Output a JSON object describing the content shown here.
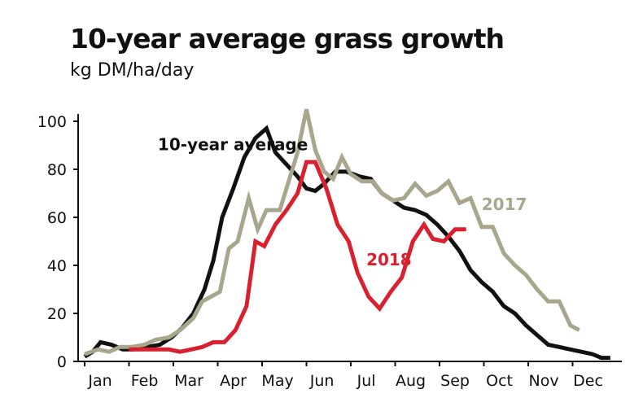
{
  "chart_data": {
    "type": "line",
    "title": "10-year average grass growth",
    "subtitle": "kg DM/ha/day",
    "xlabel": "",
    "ylabel": "",
    "xlim": [
      0,
      12
    ],
    "ylim": [
      0,
      110
    ],
    "yticks": [
      0,
      20,
      40,
      60,
      80,
      100
    ],
    "months": [
      "Jan",
      "Feb",
      "Mar",
      "Apr",
      "May",
      "Jun",
      "Jul",
      "Aug",
      "Sep",
      "Oct",
      "Nov",
      "Dec"
    ],
    "grid": false,
    "series": [
      {
        "name": "10-year average",
        "color": "#111111",
        "points": [
          [
            0.0,
            2
          ],
          [
            0.18,
            4
          ],
          [
            0.36,
            8
          ],
          [
            0.6,
            7
          ],
          [
            0.86,
            5
          ],
          [
            1.1,
            5
          ],
          [
            1.4,
            6
          ],
          [
            1.7,
            7
          ],
          [
            1.96,
            10
          ],
          [
            2.2,
            14
          ],
          [
            2.45,
            20
          ],
          [
            2.7,
            30
          ],
          [
            2.9,
            42
          ],
          [
            3.1,
            60
          ],
          [
            3.35,
            72
          ],
          [
            3.6,
            85
          ],
          [
            3.85,
            93
          ],
          [
            4.1,
            97
          ],
          [
            4.3,
            87
          ],
          [
            4.55,
            82
          ],
          [
            4.8,
            77
          ],
          [
            5.0,
            72
          ],
          [
            5.2,
            71
          ],
          [
            5.4,
            74
          ],
          [
            5.65,
            79
          ],
          [
            5.9,
            79
          ],
          [
            6.2,
            77
          ],
          [
            6.45,
            76
          ],
          [
            6.7,
            70
          ],
          [
            6.95,
            67
          ],
          [
            7.2,
            64
          ],
          [
            7.45,
            63
          ],
          [
            7.7,
            61
          ],
          [
            7.95,
            57
          ],
          [
            8.2,
            52
          ],
          [
            8.45,
            46
          ],
          [
            8.7,
            38
          ],
          [
            8.95,
            33
          ],
          [
            9.2,
            29
          ],
          [
            9.45,
            23
          ],
          [
            9.7,
            20
          ],
          [
            9.95,
            15
          ],
          [
            10.2,
            11
          ],
          [
            10.45,
            7
          ],
          [
            10.7,
            6
          ],
          [
            10.95,
            5
          ],
          [
            11.2,
            4
          ],
          [
            11.45,
            3
          ],
          [
            11.65,
            1.5
          ],
          [
            11.85,
            1.5
          ]
        ]
      },
      {
        "name": "2017",
        "color": "#a8a68d",
        "points": [
          [
            0.0,
            3
          ],
          [
            0.3,
            5
          ],
          [
            0.55,
            4
          ],
          [
            0.8,
            6
          ],
          [
            1.05,
            6
          ],
          [
            1.35,
            7
          ],
          [
            1.6,
            9
          ],
          [
            1.9,
            10
          ],
          [
            2.15,
            13
          ],
          [
            2.45,
            18
          ],
          [
            2.65,
            25
          ],
          [
            2.85,
            27
          ],
          [
            3.05,
            29
          ],
          [
            3.25,
            47
          ],
          [
            3.45,
            50
          ],
          [
            3.7,
            68
          ],
          [
            3.9,
            55
          ],
          [
            4.1,
            63
          ],
          [
            4.4,
            63
          ],
          [
            4.65,
            78
          ],
          [
            4.8,
            87
          ],
          [
            5.0,
            105
          ],
          [
            5.2,
            88
          ],
          [
            5.4,
            79
          ],
          [
            5.6,
            76
          ],
          [
            5.8,
            85
          ],
          [
            6.0,
            78
          ],
          [
            6.25,
            75
          ],
          [
            6.5,
            75
          ],
          [
            6.7,
            70
          ],
          [
            6.95,
            67
          ],
          [
            7.2,
            68
          ],
          [
            7.45,
            74
          ],
          [
            7.7,
            69
          ],
          [
            7.95,
            71
          ],
          [
            8.2,
            75
          ],
          [
            8.45,
            66
          ],
          [
            8.7,
            68
          ],
          [
            8.95,
            56
          ],
          [
            9.2,
            56
          ],
          [
            9.45,
            45
          ],
          [
            9.7,
            40
          ],
          [
            9.95,
            36
          ],
          [
            10.2,
            30
          ],
          [
            10.45,
            25
          ],
          [
            10.7,
            25
          ],
          [
            10.95,
            15
          ],
          [
            11.15,
            13
          ]
        ]
      },
      {
        "name": "2018",
        "color": "#d8202f",
        "points": [
          [
            1.0,
            5
          ],
          [
            1.3,
            5
          ],
          [
            1.6,
            5
          ],
          [
            1.9,
            5
          ],
          [
            2.15,
            4
          ],
          [
            2.4,
            5
          ],
          [
            2.65,
            6
          ],
          [
            2.9,
            8
          ],
          [
            3.15,
            8
          ],
          [
            3.4,
            13
          ],
          [
            3.65,
            23
          ],
          [
            3.85,
            50
          ],
          [
            4.05,
            48
          ],
          [
            4.3,
            57
          ],
          [
            4.55,
            63
          ],
          [
            4.8,
            70
          ],
          [
            5.0,
            83
          ],
          [
            5.2,
            83
          ],
          [
            5.45,
            72
          ],
          [
            5.7,
            57
          ],
          [
            5.95,
            50
          ],
          [
            6.15,
            37
          ],
          [
            6.4,
            27
          ],
          [
            6.65,
            22
          ],
          [
            6.9,
            29
          ],
          [
            7.15,
            35
          ],
          [
            7.4,
            50
          ],
          [
            7.65,
            57
          ],
          [
            7.85,
            51
          ],
          [
            8.1,
            50
          ],
          [
            8.35,
            55
          ],
          [
            8.6,
            55
          ]
        ]
      }
    ],
    "annotations": [
      {
        "text": "10-year average",
        "series": "10-year average",
        "x": 1.65,
        "y": 88
      },
      {
        "text": "2017",
        "series": "2017",
        "x": 8.95,
        "y": 63
      },
      {
        "text": "2018",
        "series": "2018",
        "x": 6.35,
        "y": 40
      }
    ]
  }
}
